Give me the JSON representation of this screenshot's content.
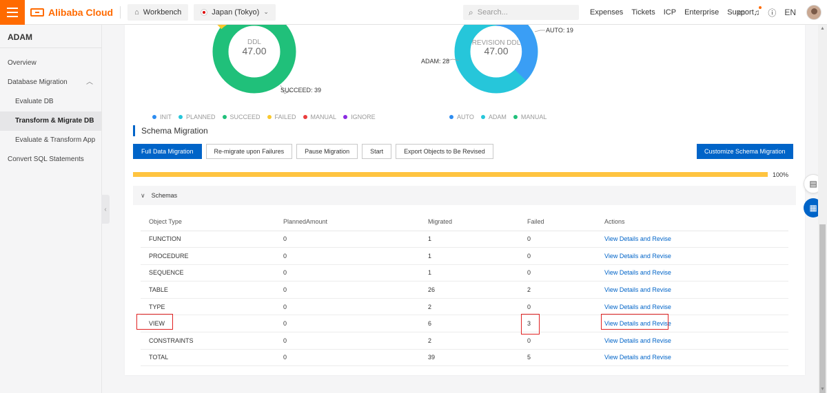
{
  "topbar": {
    "brand": "Alibaba Cloud",
    "workbench": "Workbench",
    "region": "Japan (Tokyo)",
    "search_placeholder": "Search...",
    "links": [
      "Expenses",
      "Tickets",
      "ICP",
      "Enterprise",
      "Support"
    ],
    "lang": "EN",
    "accent_color": "#ff6a00"
  },
  "sidebar": {
    "title": "ADAM",
    "items": [
      {
        "label": "Overview"
      },
      {
        "label": "Database Migration"
      },
      {
        "label": "Evaluate DB"
      },
      {
        "label": "Transform & Migrate DB"
      },
      {
        "label": "Evaluate & Transform App"
      },
      {
        "label": "Convert SQL Statements"
      }
    ]
  },
  "donut_ddl": {
    "title": "DDL",
    "total": "47.00",
    "callout": "SUCCEED: 39",
    "legend": [
      "INIT",
      "PLANNED",
      "SUCCEED",
      "FAILED",
      "MANUAL",
      "IGNORE"
    ],
    "legend_colors": [
      "#2d8cf0",
      "#26c6da",
      "#20c07a",
      "#fac82d",
      "#ea3d3d",
      "#8a2be2"
    ]
  },
  "donut_revision": {
    "title": "REVISION DDL",
    "total": "47.00",
    "callout_auto": "AUTO: 19",
    "callout_adam": "ADAM: 28",
    "legend": [
      "AUTO",
      "ADAM",
      "MANUAL"
    ],
    "legend_colors": [
      "#2d8cf0",
      "#26c6da",
      "#20c07a"
    ]
  },
  "schema_migration": {
    "title": "Schema Migration",
    "buttons": [
      "Full Data Migration",
      "Re-migrate upon Failures",
      "Pause Migration",
      "Start",
      "Export Objects to Be Revised"
    ],
    "customize": "Customize Schema Migration",
    "progress_fraction": 1.0,
    "progress_label": "100%",
    "primary_color": "#0064c8",
    "progress_color": "#ffc440"
  },
  "schemas": {
    "label": "Schemas",
    "headers": [
      "Object Type",
      "PlannedAmount",
      "Migrated",
      "Failed",
      "Actions"
    ],
    "rows": [
      {
        "type": "FUNCTION",
        "planned": "0",
        "migrated": "1",
        "failed": "0",
        "action": "View Details and Revise"
      },
      {
        "type": "PROCEDURE",
        "planned": "0",
        "migrated": "1",
        "failed": "0",
        "action": "View Details and Revise"
      },
      {
        "type": "SEQUENCE",
        "planned": "0",
        "migrated": "1",
        "failed": "0",
        "action": "View Details and Revise"
      },
      {
        "type": "TABLE",
        "planned": "0",
        "migrated": "26",
        "failed": "2",
        "action": "View Details and Revise"
      },
      {
        "type": "TYPE",
        "planned": "0",
        "migrated": "2",
        "failed": "0",
        "action": "View Details and Revise"
      },
      {
        "type": "VIEW",
        "planned": "0",
        "migrated": "6",
        "failed": "3",
        "action": "View Details and Revise"
      },
      {
        "type": "CONSTRAINTS",
        "planned": "0",
        "migrated": "2",
        "failed": "0",
        "action": "View Details and Revise"
      },
      {
        "type": "TOTAL",
        "planned": "0",
        "migrated": "39",
        "failed": "5",
        "action": "View Details and Revise"
      }
    ]
  }
}
